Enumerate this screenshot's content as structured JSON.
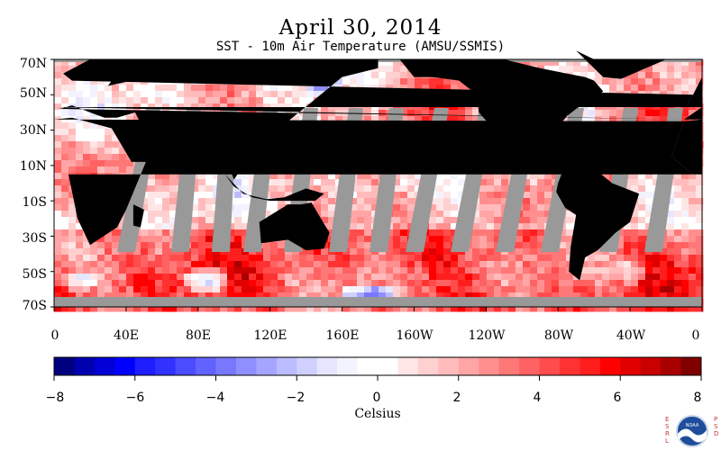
{
  "title": "April 30, 2014",
  "subtitle": "SST - 10m Air Temperature (AMSU/SSMIS)",
  "map": {
    "projection": "equirectangular",
    "lat_range": [
      -70,
      70
    ],
    "lon_range": [
      0,
      360
    ],
    "lat_labels": [
      "70N",
      "50N",
      "30N",
      "10N",
      "10S",
      "30S",
      "50S",
      "70S"
    ],
    "lon_labels": [
      "0",
      "40E",
      "80E",
      "120E",
      "160E",
      "160W",
      "120W",
      "80W",
      "40W",
      "0"
    ],
    "land_color": "#000000",
    "no_data_color": "#999999"
  },
  "colorbar": {
    "min": -8,
    "max": 8,
    "step": 0.5,
    "tick_labels": [
      "−8",
      "−6",
      "−4",
      "−2",
      "0",
      "2",
      "4",
      "6",
      "8"
    ],
    "unit_label": "Celsius",
    "colors_negative": [
      "#00007f",
      "#0000af",
      "#0000d7",
      "#0000ff",
      "#1e1eff",
      "#3232ff",
      "#4c4cff",
      "#6262ff",
      "#7878ff",
      "#8f8fff",
      "#a5a5ff",
      "#bbbbff",
      "#d0d0ff",
      "#e6e6ff",
      "#f3f3ff",
      "#ffffff"
    ],
    "colors_positive": [
      "#ffffff",
      "#ffe6e6",
      "#ffd0d0",
      "#ffbbbb",
      "#ffa5a5",
      "#ff8f8f",
      "#ff7878",
      "#ff6262",
      "#ff4c4c",
      "#ff3232",
      "#ff1e1e",
      "#ff0000",
      "#e00000",
      "#c80000",
      "#a80000",
      "#800000"
    ]
  },
  "logo": {
    "left_text": "ESRL",
    "right_text": "PSD",
    "badge_text": "NOAA"
  }
}
